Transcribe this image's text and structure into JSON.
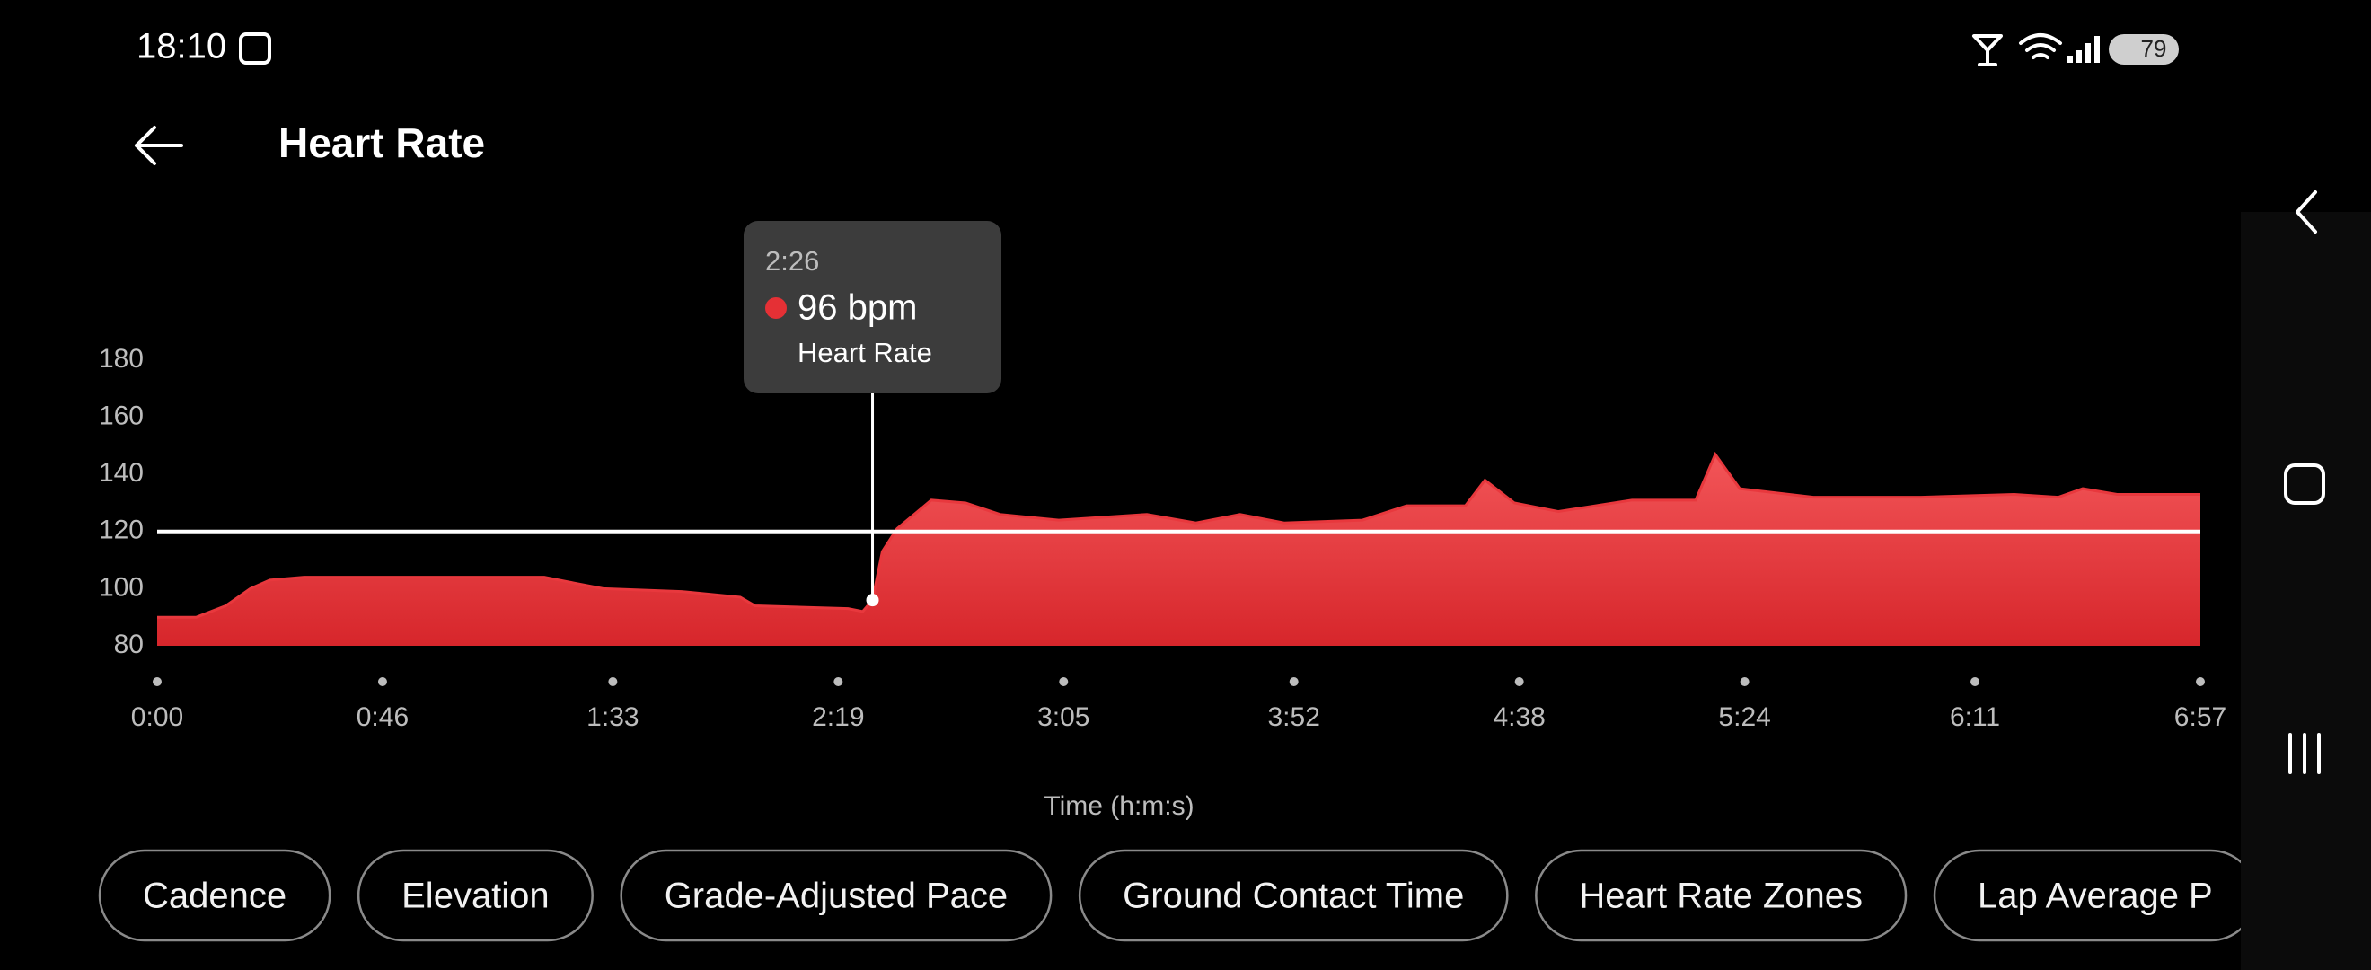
{
  "status_bar": {
    "time": "18:10",
    "battery": "79"
  },
  "header": {
    "title": "Heart Rate"
  },
  "chart_data": {
    "type": "area",
    "x_label": "Time (h:m:s)",
    "xlim": [
      0,
      417
    ],
    "ylim": [
      80,
      180
    ],
    "xticks": [
      {
        "value": 0,
        "label": "0:00"
      },
      {
        "value": 46,
        "label": "0:46"
      },
      {
        "value": 93,
        "label": "1:33"
      },
      {
        "value": 139,
        "label": "2:19"
      },
      {
        "value": 185,
        "label": "3:05"
      },
      {
        "value": 232,
        "label": "3:52"
      },
      {
        "value": 278,
        "label": "4:38"
      },
      {
        "value": 324,
        "label": "5:24"
      },
      {
        "value": 371,
        "label": "6:11"
      },
      {
        "value": 417,
        "label": "6:57"
      }
    ],
    "yticks": [
      80,
      100,
      120,
      140,
      160,
      180
    ],
    "reference_line": 120,
    "x": [
      0,
      8,
      14,
      19,
      23,
      30,
      79,
      85,
      91,
      107,
      119,
      122,
      141,
      144,
      146,
      148,
      151,
      158,
      165,
      172,
      184,
      202,
      212,
      221,
      230,
      246,
      255,
      267,
      271,
      277,
      286,
      301,
      314,
      318,
      323,
      338,
      360,
      379,
      388,
      393,
      400,
      417
    ],
    "series": [
      {
        "name": "Heart Rate",
        "color": "#e8383d",
        "values": [
          90,
          90,
          94,
          100,
          103,
          104,
          104,
          102,
          100,
          99,
          97,
          94,
          93,
          92,
          96,
          113,
          121,
          131,
          130,
          126,
          124,
          126,
          123,
          126,
          123,
          124,
          129,
          129,
          138,
          130,
          127,
          131,
          131,
          147,
          135,
          132,
          132,
          133,
          132,
          135,
          133,
          133
        ]
      }
    ]
  },
  "tooltip": {
    "time": "2:26",
    "x": 146,
    "value": 96,
    "value_label": "96 bpm",
    "name": "Heart Rate"
  },
  "chips": [
    "Cadence",
    "Elevation",
    "Grade-Adjusted Pace",
    "Ground Contact Time",
    "Heart Rate Zones",
    "Lap Average P"
  ]
}
